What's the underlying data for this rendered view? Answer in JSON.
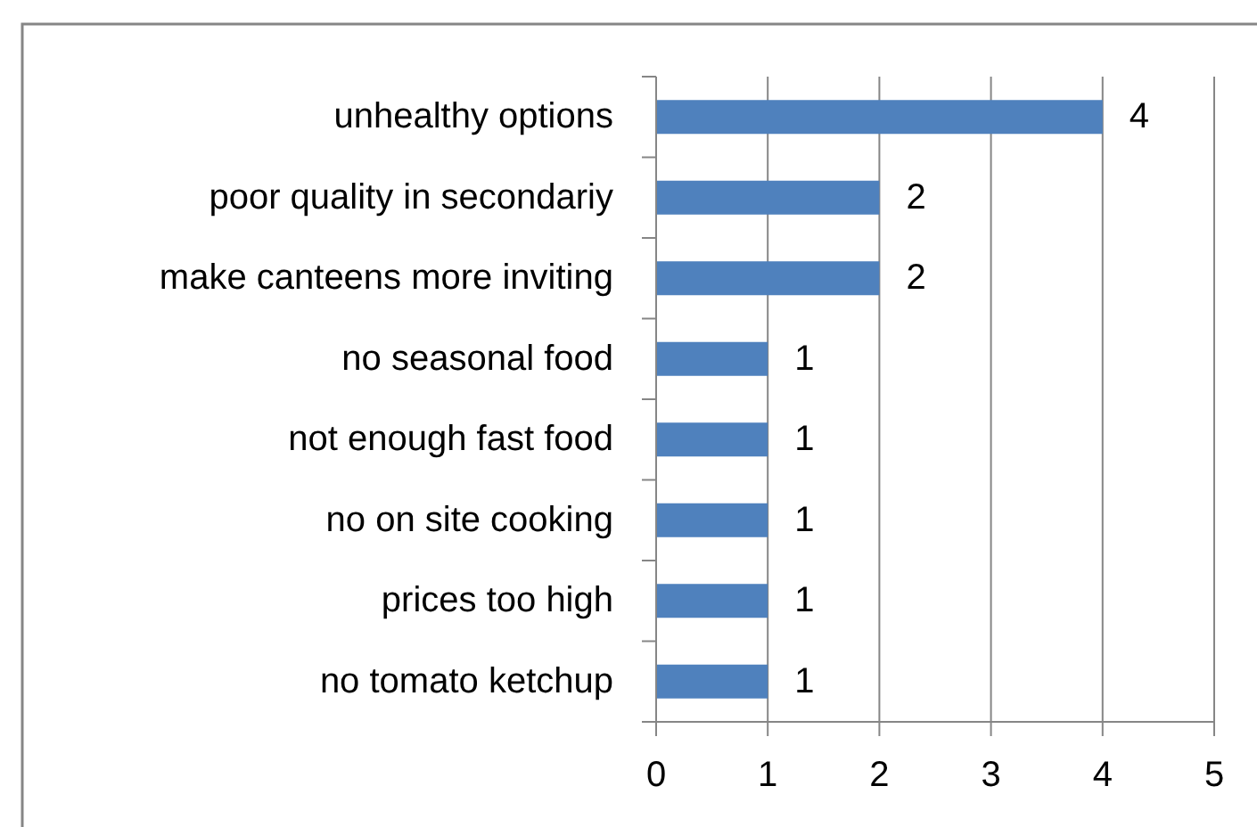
{
  "chart_data": {
    "type": "bar",
    "orientation": "horizontal",
    "categories": [
      "unhealthy options",
      "poor quality in secondariy",
      "make canteens more inviting",
      "no seasonal food",
      "not enough fast food",
      "no on site cooking",
      "prices too high",
      "no tomato ketchup"
    ],
    "values": [
      4,
      2,
      2,
      1,
      1,
      1,
      1,
      1
    ],
    "color": "#4f81bd",
    "xlim": [
      0,
      5
    ],
    "xticks": [
      0,
      1,
      2,
      3,
      4,
      5
    ],
    "grid": "x",
    "data_labels": true
  }
}
